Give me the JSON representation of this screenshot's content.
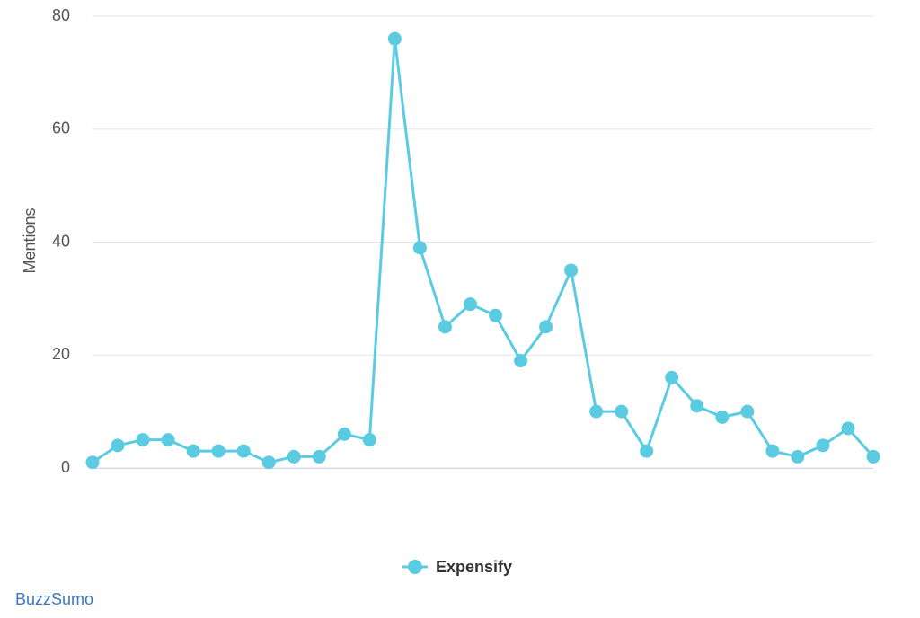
{
  "chart_data": {
    "type": "line",
    "y_label": "Mentions",
    "categories": [
      null,
      null,
      null,
      null,
      null,
      null,
      null,
      null,
      null,
      null,
      null,
      null,
      null,
      null,
      null,
      null,
      null,
      null,
      null,
      null,
      null,
      null,
      null,
      null,
      null,
      null,
      null,
      null,
      null,
      null,
      null,
      null
    ],
    "series": [
      {
        "name": "Expensify",
        "color": "#5bcbe2",
        "values": [
          1,
          4,
          5,
          5,
          3,
          3,
          3,
          1,
          2,
          2,
          6,
          5,
          76,
          39,
          25,
          29,
          27,
          19,
          25,
          35,
          10,
          10,
          3,
          16,
          11,
          9,
          10,
          3,
          2,
          4,
          7,
          2
        ]
      }
    ],
    "ylim": [
      0,
      80
    ],
    "yticks": [
      0,
      20,
      40,
      60,
      80
    ],
    "grid": true,
    "legend": "bottom"
  },
  "footer": "BuzzSumo"
}
